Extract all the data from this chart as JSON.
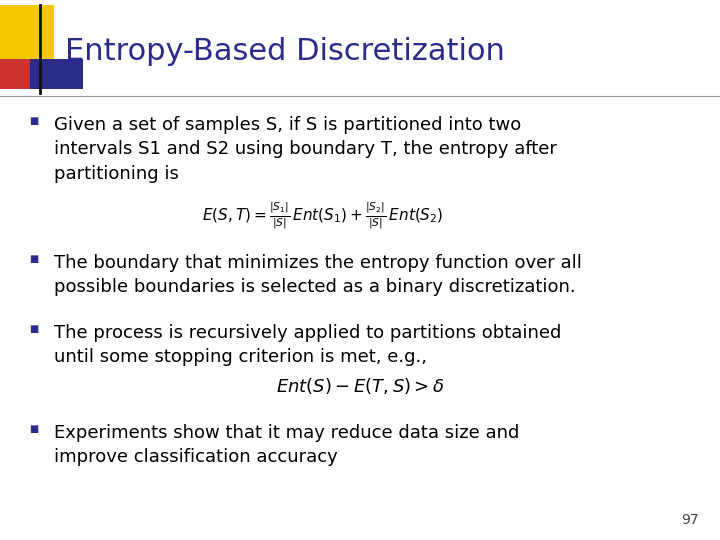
{
  "title": "Entropy-Based Discretization",
  "title_color": "#2B2B8B",
  "title_fontsize": 22,
  "bg_color": "#FFFFFF",
  "slide_number": "97",
  "text_color": "#000000",
  "bullet_marker_color": "#2B2B8B",
  "formula1": "$E(S,T) = \\frac{|S_1|}{|S|}\\,Ent(S_1) + \\frac{|S_2|}{|S|}\\,Ent(S_2)$",
  "formula2": "$Ent(S) - E(T,S) > \\delta$",
  "text_fontsize": 13,
  "formula1_fontsize": 11,
  "formula2_fontsize": 13
}
